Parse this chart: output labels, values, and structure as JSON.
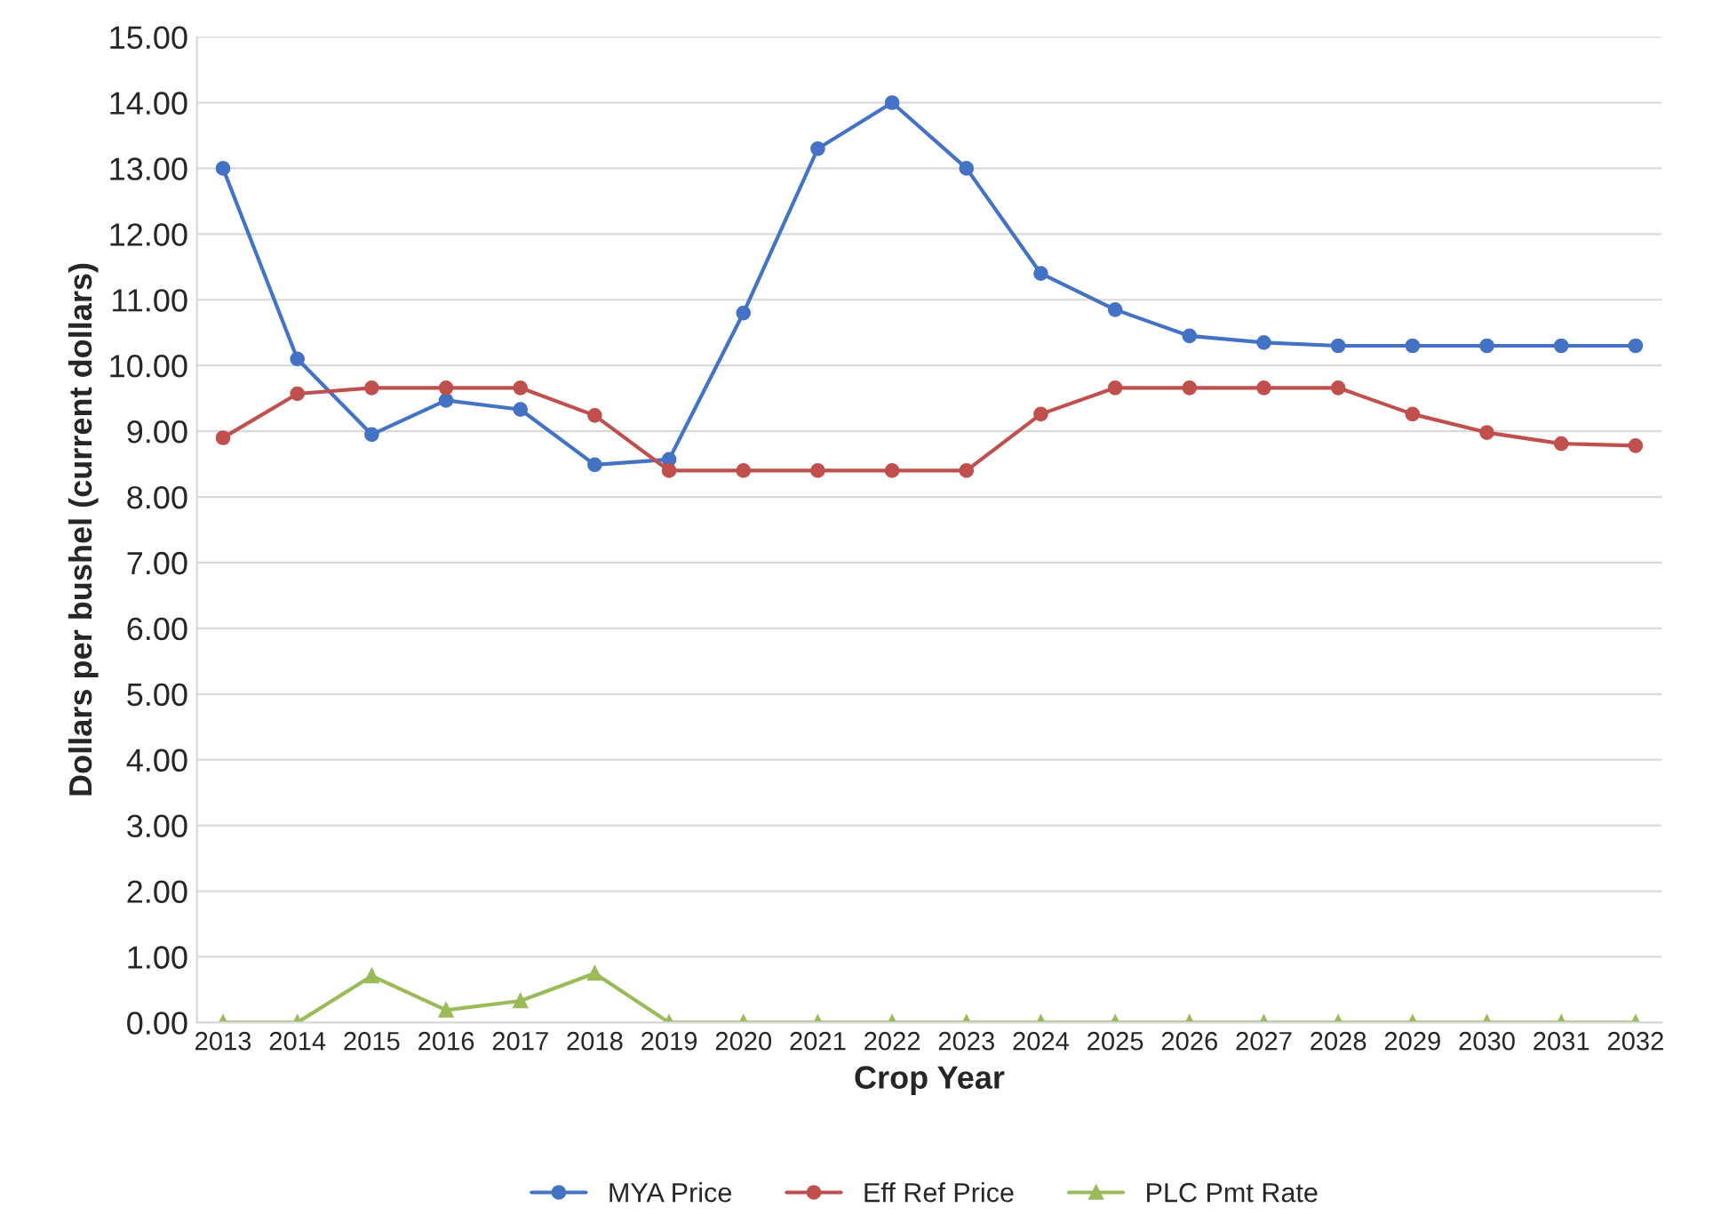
{
  "chart_data": {
    "type": "line",
    "xlabel": "Crop Year",
    "ylabel": "Dollars per bushel (current dollars)",
    "categories": [
      "2013",
      "2014",
      "2015",
      "2016",
      "2017",
      "2018",
      "2019",
      "2020",
      "2021",
      "2022",
      "2023",
      "2024",
      "2025",
      "2026",
      "2027",
      "2028",
      "2029",
      "2030",
      "2031",
      "2032"
    ],
    "series": [
      {
        "name": "MYA Price",
        "color": "#4472c4",
        "marker": "circle",
        "values": [
          13.0,
          10.1,
          8.95,
          9.47,
          9.33,
          8.49,
          8.57,
          10.8,
          13.3,
          14.0,
          13.0,
          11.4,
          10.85,
          10.45,
          10.35,
          10.3,
          10.3,
          10.3,
          10.3,
          10.3
        ]
      },
      {
        "name": "Eff Ref Price",
        "color": "#c0504d",
        "marker": "circle",
        "values": [
          8.9,
          9.57,
          9.66,
          9.66,
          9.66,
          9.24,
          8.4,
          8.4,
          8.4,
          8.4,
          8.4,
          9.26,
          9.66,
          9.66,
          9.66,
          9.66,
          9.26,
          8.98,
          8.81,
          8.78
        ]
      },
      {
        "name": "PLC Pmt Rate",
        "color": "#9bbb59",
        "marker": "triangle",
        "values": [
          0,
          0,
          0.71,
          0.19,
          0.33,
          0.75,
          0,
          0,
          0,
          0,
          0,
          0,
          0,
          0,
          0,
          0,
          0,
          0,
          0,
          0
        ]
      }
    ],
    "ylim": [
      0,
      15
    ],
    "yticks": [
      {
        "value": 0,
        "label": "0.00"
      },
      {
        "value": 1,
        "label": "1.00"
      },
      {
        "value": 2,
        "label": "2.00"
      },
      {
        "value": 3,
        "label": "3.00"
      },
      {
        "value": 4,
        "label": "4.00"
      },
      {
        "value": 5,
        "label": "5.00"
      },
      {
        "value": 6,
        "label": "6.00"
      },
      {
        "value": 7,
        "label": "7.00"
      },
      {
        "value": 8,
        "label": "8.00"
      },
      {
        "value": 9,
        "label": "9.00"
      },
      {
        "value": 10,
        "label": "10.00"
      },
      {
        "value": 11,
        "label": "11.00"
      },
      {
        "value": 12,
        "label": "12.00"
      },
      {
        "value": 13,
        "label": "13.00"
      },
      {
        "value": 14,
        "label": "14.00"
      },
      {
        "value": 15,
        "label": "15.00"
      }
    ],
    "grid": "y",
    "legend": "bottom",
    "line_style": "solid"
  }
}
